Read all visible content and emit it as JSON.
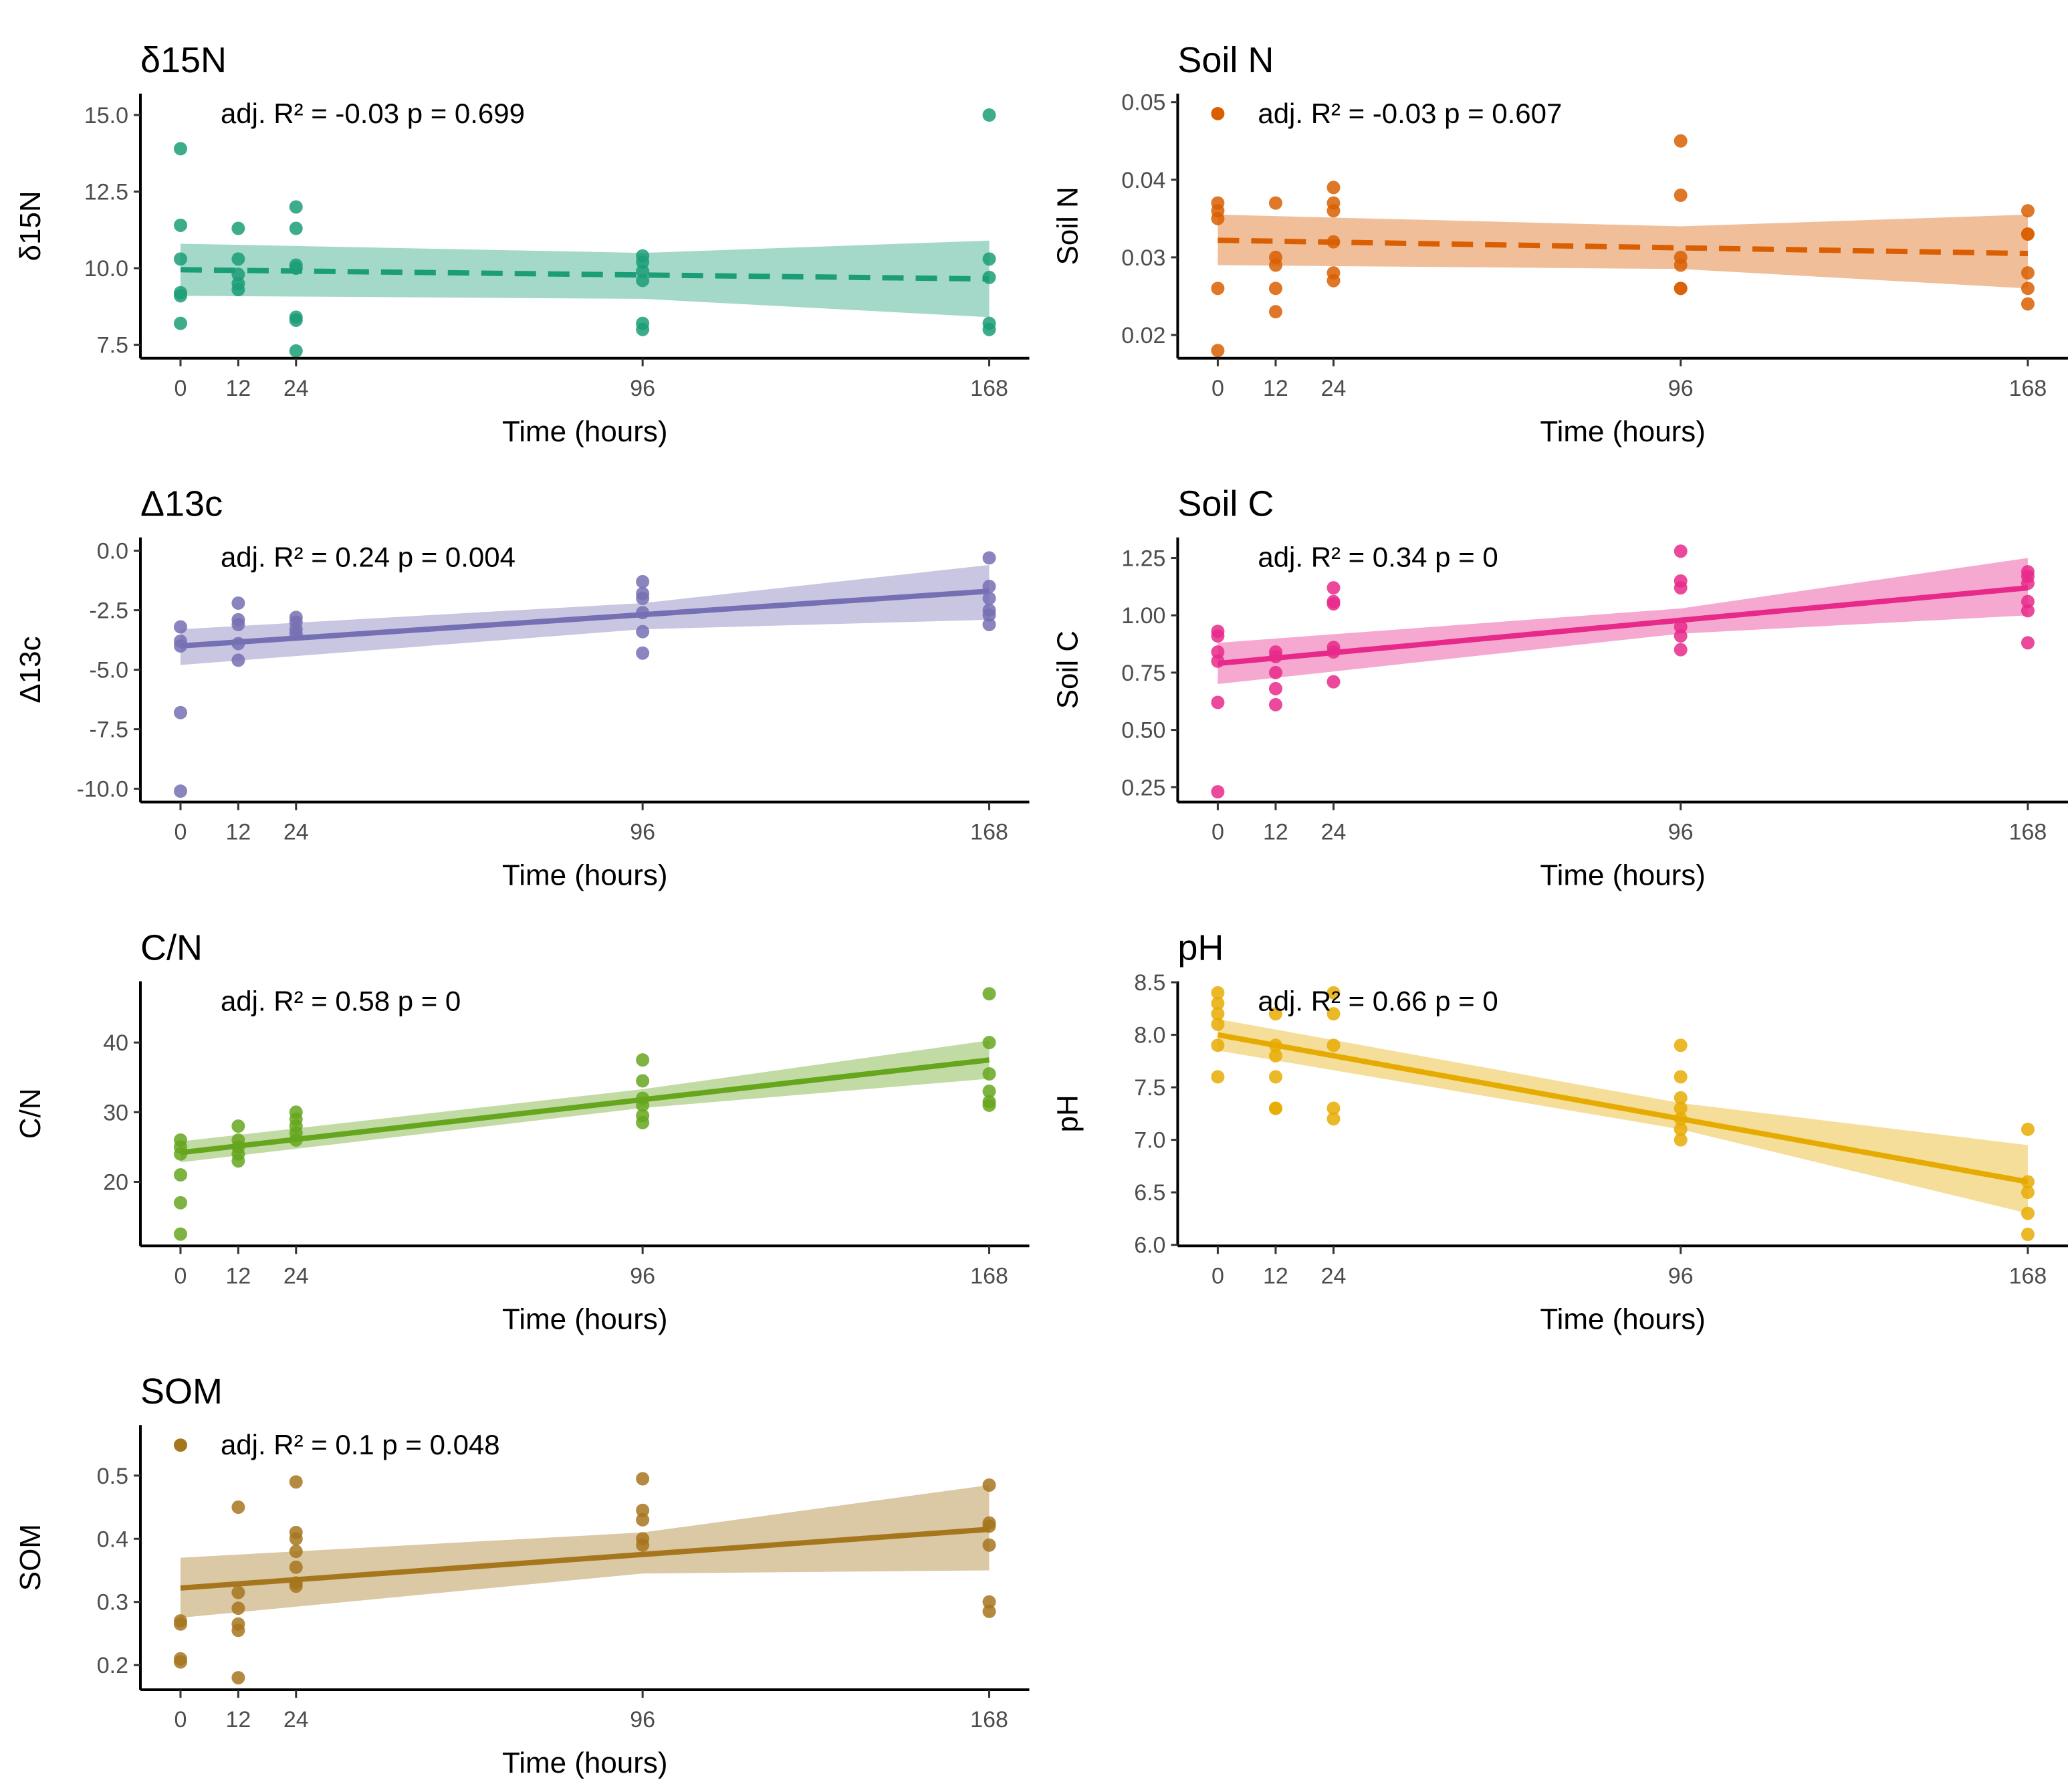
{
  "chart_data": [
    {
      "type": "scatter",
      "title": "δ15N",
      "ylabel": "δ15N",
      "xlabel": "Time (hours)",
      "annotation": "adj. R² = -0.03 p = 0.699",
      "color": "#1b9e77",
      "line": "dashed",
      "legend_dot": false,
      "xticks": [
        0,
        12,
        24,
        96,
        168
      ],
      "yticks": [
        "15.0",
        "12.5",
        "10.0",
        "7.5"
      ],
      "ylim": [
        7.06,
        15.7
      ],
      "points": {
        "0": [
          13.9,
          11.4,
          10.3,
          9.2,
          9.1,
          8.2
        ],
        "12": [
          11.3,
          10.3,
          9.8,
          9.5,
          9.3
        ],
        "24": [
          12.0,
          11.3,
          10.1,
          10.0,
          8.4,
          8.3,
          7.3
        ],
        "96": [
          10.4,
          10.2,
          9.9,
          9.6,
          8.2,
          8.0
        ],
        "168": [
          15.0,
          10.3,
          9.7,
          8.2,
          8.0
        ]
      },
      "fit": [
        9.95,
        9.65
      ],
      "ci": {
        "0": [
          9.1,
          10.8
        ],
        "96": [
          9.0,
          10.5
        ],
        "168": [
          8.4,
          10.9
        ]
      }
    },
    {
      "type": "scatter",
      "title": "Soil N",
      "ylabel": "Soil N",
      "xlabel": "Time (hours)",
      "annotation": "adj. R² = -0.03 p = 0.607",
      "color": "#d95f02",
      "line": "dashed",
      "legend_dot": true,
      "xticks": [
        0,
        12,
        24,
        96,
        168
      ],
      "yticks": [
        "0.05",
        "0.04",
        "0.03",
        "0.02"
      ],
      "ylim": [
        0.017,
        0.0511
      ],
      "points": {
        "0": [
          0.037,
          0.036,
          0.035,
          0.026,
          0.018
        ],
        "12": [
          0.037,
          0.03,
          0.029,
          0.026,
          0.023
        ],
        "24": [
          0.039,
          0.037,
          0.036,
          0.032,
          0.028,
          0.027
        ],
        "96": [
          0.045,
          0.038,
          0.03,
          0.029,
          0.026,
          0.026
        ],
        "168": [
          0.036,
          0.033,
          0.033,
          0.028,
          0.026,
          0.024
        ]
      },
      "fit": [
        0.0322,
        0.0305
      ],
      "ci": {
        "0": [
          0.029,
          0.0355
        ],
        "96": [
          0.0285,
          0.034
        ],
        "168": [
          0.026,
          0.0355
        ]
      }
    },
    {
      "type": "scatter",
      "title": "Δ13c",
      "ylabel": "Δ13c",
      "xlabel": "Time (hours)",
      "annotation": "adj. R² = 0.24 p = 0.004",
      "color": "#7570b3",
      "line": "solid",
      "legend_dot": false,
      "xticks": [
        0,
        12,
        24,
        96,
        168
      ],
      "yticks": [
        "0.0",
        "-2.5",
        "-5.0",
        "-7.5",
        "-10.0"
      ],
      "ylim": [
        -10.56,
        0.56
      ],
      "points": {
        "0": [
          -3.2,
          -3.8,
          -4.0,
          -6.8,
          -10.1
        ],
        "12": [
          -2.2,
          -2.9,
          -3.1,
          -3.9,
          -4.6
        ],
        "24": [
          -2.8,
          -3.0,
          -3.3,
          -3.5
        ],
        "96": [
          -1.3,
          -1.8,
          -2.0,
          -2.6,
          -3.4,
          -4.3
        ],
        "168": [
          -0.3,
          -1.5,
          -2.0,
          -2.5,
          -2.7,
          -3.1
        ]
      },
      "fit": [
        -4.0,
        -1.7
      ],
      "ci": {
        "0": [
          -4.8,
          -3.3
        ],
        "96": [
          -3.3,
          -2.2
        ],
        "168": [
          -2.9,
          -0.6
        ]
      }
    },
    {
      "type": "scatter",
      "title": "Soil C",
      "ylabel": "Soil C",
      "xlabel": "Time (hours)",
      "annotation": "adj. R² = 0.34 p = 0",
      "color": "#e7298a",
      "line": "solid",
      "legend_dot": false,
      "xticks": [
        0,
        12,
        24,
        96,
        168
      ],
      "yticks": [
        "1.25",
        "1.00",
        "0.75",
        "0.50",
        "0.25"
      ],
      "ylim": [
        0.185,
        1.34
      ],
      "points": {
        "0": [
          0.93,
          0.91,
          0.84,
          0.8,
          0.62,
          0.23
        ],
        "12": [
          0.84,
          0.82,
          0.75,
          0.68,
          0.61
        ],
        "24": [
          1.12,
          1.06,
          1.05,
          0.86,
          0.84,
          0.71
        ],
        "96": [
          1.28,
          1.15,
          1.12,
          0.95,
          0.91,
          0.85
        ],
        "168": [
          1.19,
          1.17,
          1.14,
          1.06,
          1.02,
          0.88
        ]
      },
      "fit": [
        0.79,
        1.12
      ],
      "ci": {
        "0": [
          0.7,
          0.88
        ],
        "96": [
          0.92,
          1.03
        ],
        "168": [
          1.0,
          1.25
        ]
      }
    },
    {
      "type": "scatter",
      "title": "C/N",
      "ylabel": "C/N",
      "xlabel": "Time (hours)",
      "annotation": "adj. R² = 0.58 p = 0",
      "color": "#66a61e",
      "line": "solid",
      "legend_dot": false,
      "xticks": [
        0,
        12,
        24,
        96,
        168
      ],
      "yticks": [
        "40",
        "30",
        "20"
      ],
      "ylim": [
        10.8,
        48.8
      ],
      "points": {
        "0": [
          26,
          25,
          24,
          21,
          17,
          12.5
        ],
        "12": [
          28,
          26,
          25,
          24,
          23
        ],
        "24": [
          30,
          29,
          28,
          27,
          26
        ],
        "96": [
          37.5,
          34.5,
          32,
          31,
          29.5,
          28.5
        ],
        "168": [
          47,
          40,
          35.5,
          33,
          31.5,
          31
        ]
      },
      "fit": [
        24.2,
        37.5
      ],
      "ci": {
        "0": [
          22.8,
          25.8
        ],
        "96": [
          30.6,
          33.3
        ],
        "168": [
          34.8,
          40.3
        ]
      }
    },
    {
      "type": "scatter",
      "title": "pH",
      "ylabel": "pH",
      "xlabel": "Time (hours)",
      "annotation": "adj. R² = 0.66 p = 0",
      "color": "#e6ab02",
      "line": "solid",
      "legend_dot": false,
      "xticks": [
        0,
        12,
        24,
        96,
        168
      ],
      "yticks": [
        "8.5",
        "8.0",
        "7.5",
        "7.0",
        "6.5",
        "6.0"
      ],
      "ylim": [
        5.99,
        8.51
      ],
      "points": {
        "0": [
          8.4,
          8.3,
          8.2,
          8.1,
          7.9,
          7.6
        ],
        "12": [
          8.2,
          7.9,
          7.8,
          7.6,
          7.3,
          7.3
        ],
        "24": [
          8.4,
          8.2,
          7.9,
          7.3,
          7.2
        ],
        "96": [
          7.9,
          7.6,
          7.4,
          7.3,
          7.2,
          7.1,
          7.0
        ],
        "168": [
          7.1,
          6.6,
          6.5,
          6.3,
          6.1
        ]
      },
      "fit": [
        8.0,
        6.6
      ],
      "ci": {
        "0": [
          7.85,
          8.15
        ],
        "96": [
          7.1,
          7.35
        ],
        "168": [
          6.3,
          6.95
        ]
      }
    },
    {
      "type": "scatter",
      "title": "SOM",
      "ylabel": "SOM",
      "xlabel": "Time (hours)",
      "annotation": "adj. R² = 0.1 p = 0.048",
      "color": "#a6761d",
      "line": "solid",
      "legend_dot": true,
      "xticks": [
        0,
        12,
        24,
        96,
        168
      ],
      "yticks": [
        "0.5",
        "0.4",
        "0.3",
        "0.2"
      ],
      "ylim": [
        0.161,
        0.58
      ],
      "points": {
        "0": [
          0.27,
          0.265,
          0.21,
          0.205
        ],
        "12": [
          0.45,
          0.315,
          0.29,
          0.265,
          0.255,
          0.18
        ],
        "24": [
          0.49,
          0.41,
          0.4,
          0.38,
          0.355,
          0.33,
          0.325
        ],
        "96": [
          0.495,
          0.445,
          0.43,
          0.4,
          0.39
        ],
        "168": [
          0.485,
          0.425,
          0.42,
          0.39,
          0.3,
          0.285
        ]
      },
      "fit": [
        0.322,
        0.415
      ],
      "ci": {
        "0": [
          0.275,
          0.37
        ],
        "96": [
          0.345,
          0.41
        ],
        "168": [
          0.35,
          0.485
        ]
      }
    }
  ]
}
